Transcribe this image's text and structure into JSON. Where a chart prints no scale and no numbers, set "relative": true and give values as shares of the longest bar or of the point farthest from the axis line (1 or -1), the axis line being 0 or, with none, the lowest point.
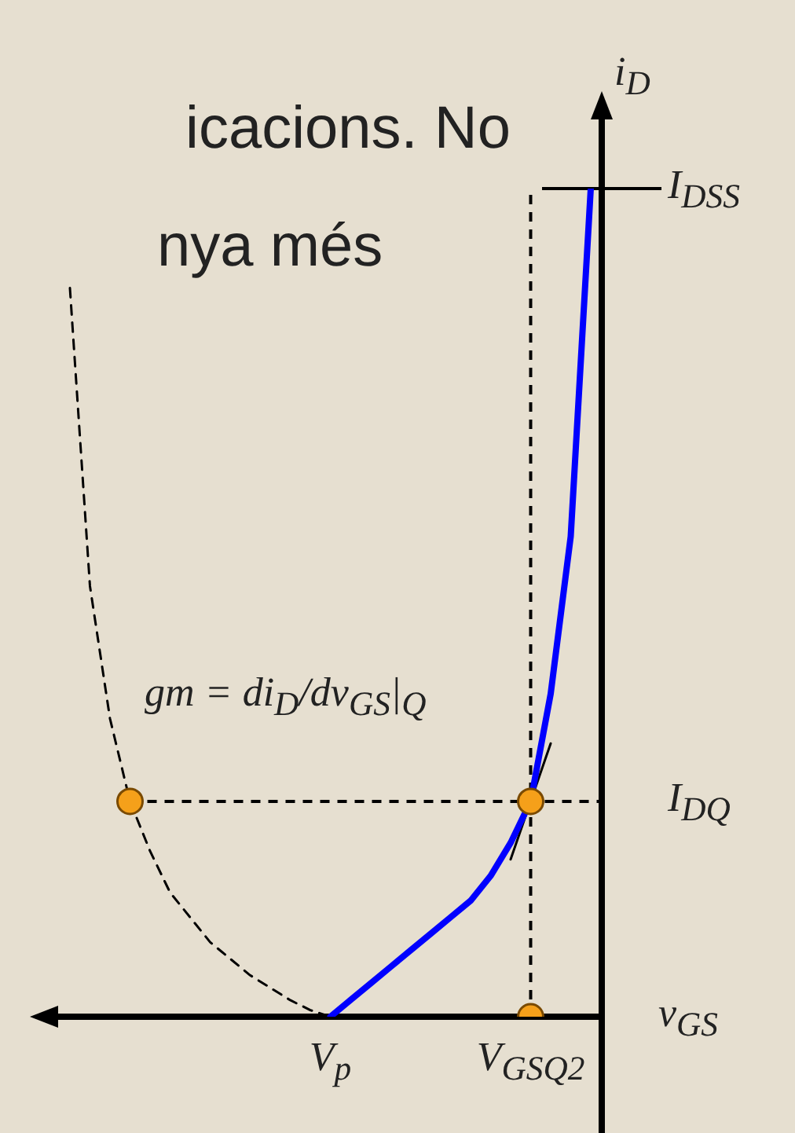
{
  "chart_data": {
    "type": "line",
    "relative": true,
    "xlabel": "v$_{GS}$",
    "ylabel": "i$_{D}$",
    "categories": [
      null,
      null,
      null,
      null,
      null,
      null,
      null,
      null,
      null,
      null,
      null,
      null,
      null,
      null,
      null,
      "V$_{p}$",
      null,
      null,
      null,
      null,
      null,
      null,
      null,
      null,
      null,
      "V$_{GSQ2}$",
      null,
      null,
      null
    ],
    "series": [
      {
        "color": "#0000ff",
        "values": [
          null,
          null,
          null,
          null,
          null,
          null,
          null,
          null,
          null,
          null,
          null,
          null,
          null,
          null,
          null,
          0,
          0.02,
          0.04,
          0.06,
          0.08,
          0.1,
          0.12,
          0.14,
          0.17,
          0.21,
          0.26,
          0.39,
          0.58,
          1
        ]
      },
      {
        "color": "#000000",
        "line_style": "dashed",
        "values": [
          null,
          null,
          0.88,
          0.52,
          0.36,
          0.26,
          0.2,
          0.15,
          0.12,
          0.09,
          0.07,
          0.05,
          0.035,
          0.02,
          0.008,
          0,
          null,
          null,
          null,
          null,
          null,
          null,
          null,
          null,
          null,
          null,
          null,
          null,
          null
        ]
      },
      {
        "color": "#000000",
        "values": [
          null,
          null,
          null,
          null,
          null,
          null,
          null,
          null,
          null,
          null,
          null,
          null,
          null,
          null,
          null,
          null,
          null,
          null,
          null,
          null,
          null,
          null,
          null,
          null,
          0.19,
          0.26,
          0.33,
          null,
          null
        ]
      },
      {
        "type": "scatter",
        "color": "#f5a01a",
        "marker": "circle",
        "values": [
          null,
          null,
          null,
          null,
          null,
          0.26,
          null,
          null,
          null,
          null,
          null,
          null,
          null,
          null,
          null,
          null,
          null,
          null,
          null,
          null,
          null,
          null,
          null,
          null,
          null,
          0.26,
          null,
          null,
          null
        ]
      },
      {
        "type": "scatter",
        "color": "#f5a01a",
        "marker": "circle",
        "values": [
          null,
          null,
          null,
          null,
          null,
          null,
          null,
          null,
          null,
          null,
          null,
          null,
          null,
          null,
          null,
          null,
          null,
          null,
          null,
          null,
          null,
          null,
          null,
          null,
          null,
          0,
          null,
          null,
          null
        ]
      }
    ],
    "ref_lines": [
      {
        "axis": "y",
        "value": 1,
        "label": "I$_{DSS}$",
        "line_style": "solid"
      },
      {
        "axis": "y",
        "value": 0.26,
        "label": "I$_{DQ}$",
        "line_style": "dashed"
      },
      {
        "axis": "x",
        "value": "V$_{GSQ2}$",
        "line_style": "dashed"
      }
    ],
    "annotations": [
      "icacions. No",
      "nya més",
      "gm = di$_{D}$/dv$_{GS}$|$_{Q}$"
    ]
  }
}
